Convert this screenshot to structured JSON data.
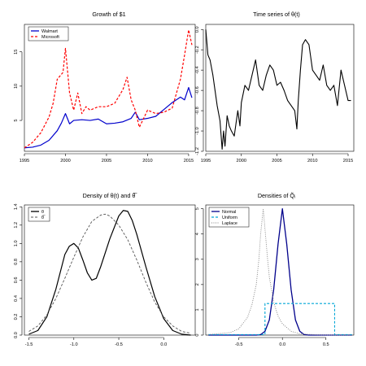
{
  "colors": {
    "walmart": "#0000cc",
    "microsoft": "#ff0000",
    "theta": "#000000",
    "normal": "#00008b",
    "uniform": "#00a6d6",
    "laplace": "#808080"
  },
  "chart_data": [
    {
      "type": "line",
      "title": "Growth of $1",
      "xlim": [
        1995,
        2015.8
      ],
      "ylim": [
        0.5,
        19
      ],
      "xticks": [
        "1995",
        "2000",
        "2005",
        "2010",
        "2015"
      ],
      "yticks": [
        "5",
        "10",
        "15"
      ],
      "legend_position": "top-left",
      "series": [
        {
          "name": "Walmart",
          "style": "solid",
          "x": [
            1995,
            1996,
            1997,
            1998,
            1999,
            1999.5,
            2000,
            2000.5,
            2001,
            2002,
            2003,
            2004,
            2005,
            2006,
            2007,
            2008,
            2008.5,
            2009,
            2010,
            2011,
            2012,
            2013,
            2014,
            2014.5,
            2015,
            2015.4
          ],
          "y": [
            1.0,
            1.1,
            1.4,
            2.1,
            3.5,
            4.6,
            6.0,
            4.5,
            5.0,
            5.1,
            5.0,
            5.2,
            4.5,
            4.6,
            4.8,
            5.3,
            6.2,
            5.1,
            5.3,
            5.6,
            6.6,
            7.6,
            8.4,
            8.0,
            9.8,
            8.3
          ]
        },
        {
          "name": "Microsoft",
          "style": "dashed",
          "x": [
            1995,
            1996,
            1997,
            1998,
            1998.5,
            1999,
            1999.7,
            2000,
            2000.5,
            2001,
            2001.5,
            2002,
            2002.5,
            2003,
            2004,
            2005,
            2006,
            2007,
            2007.5,
            2008,
            2008.5,
            2009,
            2010,
            2011,
            2012,
            2013,
            2014,
            2014.5,
            2015,
            2015.4
          ],
          "y": [
            1.0,
            1.8,
            3.2,
            5.5,
            7.5,
            11.0,
            12.0,
            15.5,
            9.0,
            6.5,
            9.0,
            6.0,
            7.0,
            6.5,
            7.0,
            7.0,
            7.5,
            9.5,
            11.3,
            8.0,
            6.5,
            4.0,
            6.5,
            6.0,
            6.2,
            6.8,
            11.0,
            14.5,
            18.2,
            16.0
          ]
        }
      ]
    },
    {
      "type": "line",
      "title": "Time series of θ(t)",
      "xlim": [
        1995,
        2015.8
      ],
      "ylim": [
        -1.2,
        0.05
      ],
      "xticks": [
        "1995",
        "2000",
        "2005",
        "2010",
        "2015"
      ],
      "yticks": [
        "0.0",
        "-0.2",
        "-0.4",
        "-0.6",
        "-0.8",
        "-1.0",
        "-1.2"
      ],
      "series": [
        {
          "x": [
            1995,
            1995.3,
            1995.6,
            1996,
            1996.3,
            1996.6,
            1997,
            1997.3,
            1997.5,
            1997.7,
            1998,
            1998.3,
            1998.6,
            1999,
            1999.5,
            1999.8,
            2000,
            2000.5,
            2001,
            2001.5,
            2002,
            2002.5,
            2003,
            2003.5,
            2004,
            2004.5,
            2005,
            2005.5,
            2006,
            2006.5,
            2007,
            2007.5,
            2007.8,
            2008,
            2008.3,
            2008.6,
            2009,
            2009.5,
            2010,
            2010.5,
            2011,
            2011.5,
            2012,
            2012.5,
            2013,
            2013.5,
            2014,
            2014.5,
            2015,
            2015.4
          ],
          "y": [
            0.0,
            -0.25,
            -0.3,
            -0.45,
            -0.6,
            -0.75,
            -0.9,
            -1.18,
            -1.0,
            -1.15,
            -0.85,
            -0.95,
            -1.0,
            -1.05,
            -0.8,
            -0.95,
            -0.72,
            -0.55,
            -0.6,
            -0.45,
            -0.3,
            -0.55,
            -0.6,
            -0.45,
            -0.35,
            -0.4,
            -0.55,
            -0.52,
            -0.6,
            -0.7,
            -0.75,
            -0.8,
            -0.98,
            -0.7,
            -0.4,
            -0.15,
            -0.1,
            -0.15,
            -0.4,
            -0.45,
            -0.5,
            -0.35,
            -0.55,
            -0.6,
            -0.55,
            -0.75,
            -0.4,
            -0.55,
            -0.7,
            -0.7
          ]
        }
      ]
    },
    {
      "type": "line",
      "title": "Density of θ(t) and θ̅",
      "xlim": [
        -1.55,
        0.35
      ],
      "ylim": [
        0,
        1.42
      ],
      "xticks": [
        "-1.5",
        "-1.0",
        "-0.5",
        "0.0"
      ],
      "yticks": [
        "0.0",
        "0.2",
        "0.4",
        "0.6",
        "0.8",
        "1.0",
        "1.2",
        "1.4"
      ],
      "legend_position": "top-left",
      "series": [
        {
          "name": "θ",
          "style": "solid",
          "x": [
            -1.5,
            -1.4,
            -1.3,
            -1.2,
            -1.1,
            -1.05,
            -1.0,
            -0.95,
            -0.9,
            -0.85,
            -0.8,
            -0.75,
            -0.7,
            -0.6,
            -0.5,
            -0.45,
            -0.4,
            -0.35,
            -0.3,
            -0.2,
            -0.1,
            0.0,
            0.1,
            0.2,
            0.3
          ],
          "y": [
            0.01,
            0.05,
            0.2,
            0.5,
            0.88,
            0.97,
            1.0,
            0.95,
            0.82,
            0.68,
            0.6,
            0.62,
            0.75,
            1.05,
            1.3,
            1.36,
            1.35,
            1.25,
            1.1,
            0.75,
            0.42,
            0.18,
            0.05,
            0.01,
            0.0
          ]
        },
        {
          "name": "θ̅",
          "style": "dashed",
          "x": [
            -1.5,
            -1.4,
            -1.3,
            -1.2,
            -1.1,
            -1.0,
            -0.9,
            -0.8,
            -0.7,
            -0.65,
            -0.6,
            -0.5,
            -0.4,
            -0.3,
            -0.2,
            -0.1,
            0.0,
            0.1,
            0.2,
            0.3
          ],
          "y": [
            0.04,
            0.1,
            0.22,
            0.4,
            0.62,
            0.85,
            1.07,
            1.24,
            1.31,
            1.32,
            1.3,
            1.2,
            1.04,
            0.82,
            0.58,
            0.36,
            0.2,
            0.1,
            0.04,
            0.02
          ]
        }
      ]
    },
    {
      "type": "line",
      "title": "Densities of Q̃ᵢ",
      "xlim": [
        -0.88,
        0.82
      ],
      "ylim": [
        0,
        5.15
      ],
      "xticks": [
        "-0.5",
        "0.0",
        "0.5"
      ],
      "yticks": [
        "0",
        "1",
        "2",
        "3",
        "4",
        "5"
      ],
      "legend_position": "top-left",
      "series": [
        {
          "name": "Normal",
          "style": "solid",
          "x": [
            -0.85,
            -0.3,
            -0.25,
            -0.2,
            -0.15,
            -0.1,
            -0.05,
            0.0,
            0.05,
            0.1,
            0.15,
            0.2,
            0.25,
            0.3,
            0.8
          ],
          "y": [
            0.0,
            0.0,
            0.02,
            0.15,
            0.6,
            1.8,
            3.6,
            5.0,
            3.6,
            1.8,
            0.6,
            0.15,
            0.02,
            0.0,
            0.0
          ]
        },
        {
          "name": "Uniform",
          "style": "dashed",
          "x": [
            -0.85,
            -0.2,
            -0.2,
            0.6,
            0.6,
            0.8
          ],
          "y": [
            0.02,
            0.02,
            1.25,
            1.25,
            0.02,
            0.02
          ]
        },
        {
          "name": "Laplace",
          "style": "dotted",
          "x": [
            -0.85,
            -0.6,
            -0.5,
            -0.4,
            -0.35,
            -0.3,
            -0.27,
            -0.25,
            -0.22,
            -0.2,
            -0.17,
            -0.15,
            -0.1,
            -0.05,
            0.0,
            0.1,
            0.2,
            0.4,
            0.6,
            0.8
          ],
          "y": [
            0.02,
            0.1,
            0.25,
            0.7,
            1.2,
            2.0,
            3.0,
            4.0,
            5.0,
            4.2,
            3.0,
            2.3,
            1.3,
            0.75,
            0.45,
            0.15,
            0.05,
            0.01,
            0.0,
            0.0
          ]
        }
      ]
    }
  ]
}
